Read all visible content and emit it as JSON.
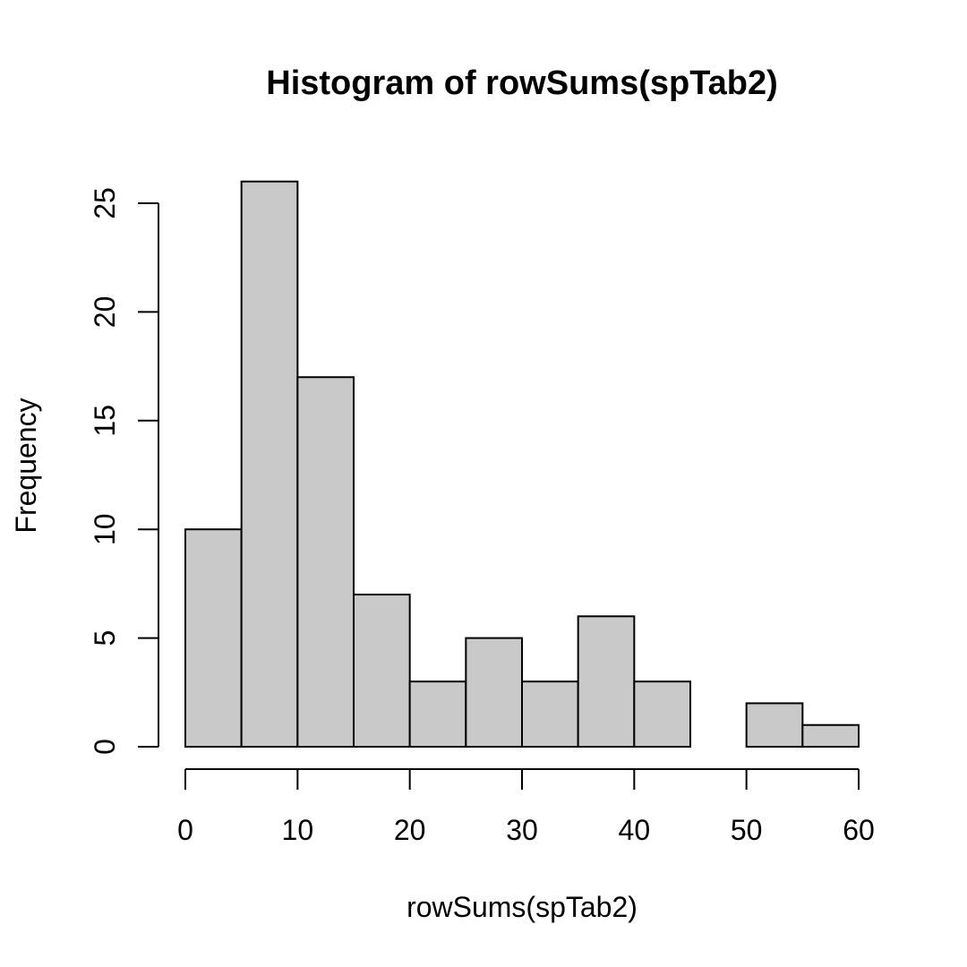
{
  "chart_data": {
    "type": "bar",
    "title": "Histogram of rowSums(spTab2)",
    "xlabel": "rowSums(spTab2)",
    "ylabel": "Frequency",
    "bins": [
      {
        "start": 0,
        "end": 5,
        "count": 10
      },
      {
        "start": 5,
        "end": 10,
        "count": 26
      },
      {
        "start": 10,
        "end": 15,
        "count": 17
      },
      {
        "start": 15,
        "end": 20,
        "count": 7
      },
      {
        "start": 20,
        "end": 25,
        "count": 3
      },
      {
        "start": 25,
        "end": 30,
        "count": 5
      },
      {
        "start": 30,
        "end": 35,
        "count": 3
      },
      {
        "start": 35,
        "end": 40,
        "count": 6
      },
      {
        "start": 40,
        "end": 45,
        "count": 3
      },
      {
        "start": 45,
        "end": 50,
        "count": 0
      },
      {
        "start": 50,
        "end": 55,
        "count": 2
      },
      {
        "start": 55,
        "end": 60,
        "count": 1
      }
    ],
    "x_ticks": [
      "0",
      "10",
      "20",
      "30",
      "40",
      "50",
      "60"
    ],
    "y_ticks": [
      "0",
      "5",
      "10",
      "15",
      "20",
      "25"
    ],
    "xlim": [
      0,
      60
    ],
    "ylim": [
      0,
      25
    ],
    "bar_color": "#c9c9c9",
    "grid": false,
    "legend": "none"
  }
}
